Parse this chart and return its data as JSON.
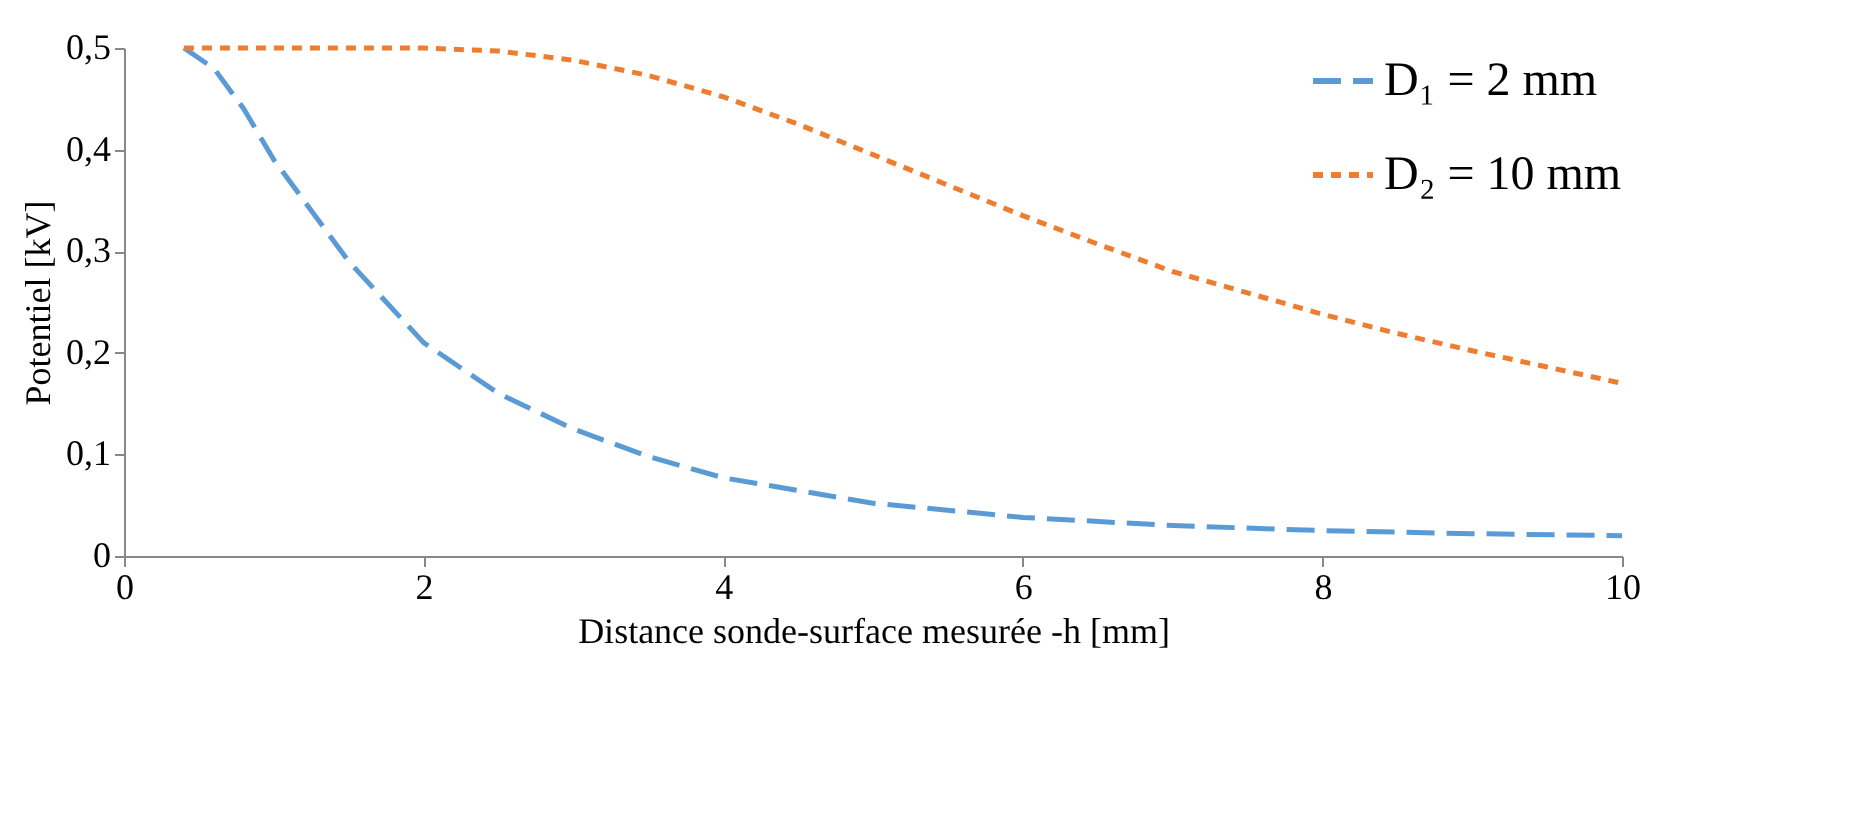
{
  "chart_data": {
    "type": "line",
    "xlabel": "Distance sonde-surface mesurée -h [mm]",
    "ylabel": "Potentiel [kV]",
    "xlim": [
      0,
      10
    ],
    "xticks": [
      0,
      2,
      4,
      6,
      8,
      10
    ],
    "ylim": [
      0,
      0.5
    ],
    "yticks": [
      0,
      {
        "value": 0.1,
        "label": "0,1"
      },
      {
        "value": 0.2,
        "label": "0,2"
      },
      {
        "value": 0.3,
        "label": "0,3"
      },
      {
        "value": 0.4,
        "label": "0,4"
      },
      {
        "value": 0.5,
        "label": "0,5"
      }
    ],
    "grid": false,
    "legend": "top right",
    "marker": "none",
    "series": [
      {
        "name": "D₁ = 2 mm",
        "color": "#5b9bd5",
        "line_style": "dashed",
        "x": [
          0.4,
          0.6,
          0.8,
          1.0,
          1.5,
          2.0,
          2.5,
          3.0,
          3.5,
          4.0,
          5.0,
          6.0,
          7.0,
          8.0,
          9.0,
          10.0
        ],
        "values": [
          0.5,
          0.48,
          0.44,
          0.39,
          0.29,
          0.21,
          0.16,
          0.125,
          0.098,
          0.077,
          0.052,
          0.038,
          0.03,
          0.025,
          0.022,
          0.02
        ]
      },
      {
        "name": "D₂ = 10 mm",
        "color": "#ed7d31",
        "line_style": "dotted",
        "x": [
          0.4,
          1.0,
          2.0,
          2.5,
          3.0,
          3.5,
          4.0,
          4.5,
          5.0,
          5.5,
          6.0,
          6.5,
          7.0,
          7.5,
          8.0,
          8.5,
          9.0,
          9.5,
          10.0
        ],
        "values": [
          0.5,
          0.5,
          0.5,
          0.497,
          0.488,
          0.473,
          0.452,
          0.425,
          0.395,
          0.365,
          0.335,
          0.307,
          0.28,
          0.259,
          0.238,
          0.219,
          0.202,
          0.186,
          0.17
        ]
      }
    ]
  }
}
